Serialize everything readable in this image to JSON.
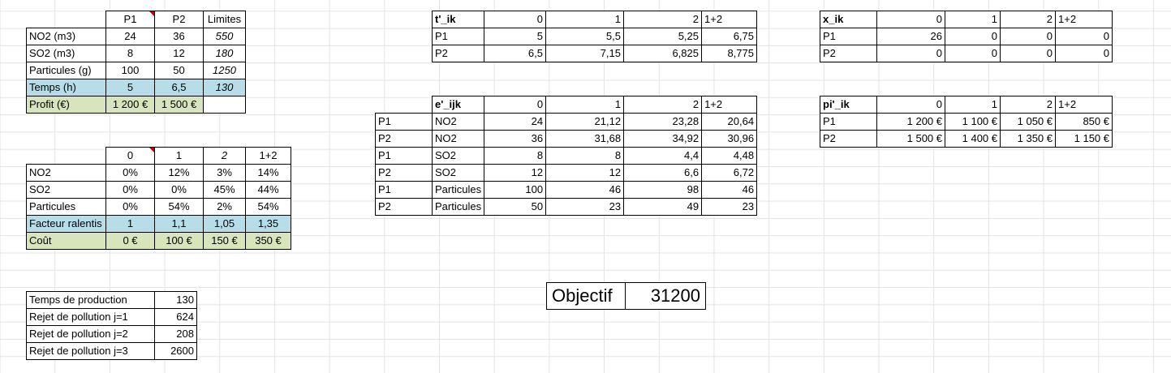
{
  "products": {
    "headers": [
      "P1",
      "P2",
      "Limites"
    ],
    "rows": [
      {
        "label": "NO2 (m3)",
        "p1": "24",
        "p2": "36",
        "limit": "550"
      },
      {
        "label": "SO2 (m3)",
        "p1": "8",
        "p2": "12",
        "limit": "180"
      },
      {
        "label": "Particules (g)",
        "p1": "100",
        "p2": "50",
        "limit": "1250"
      },
      {
        "label": "Temps (h)",
        "p1": "5",
        "p2": "6,5",
        "limit": "130"
      },
      {
        "label": "Profit (€)",
        "p1": "1 200 €",
        "p2": "1 500 €",
        "limit": ""
      }
    ]
  },
  "reductions": {
    "headers": [
      "0",
      "1",
      "2",
      "1+2"
    ],
    "rows": [
      {
        "label": "NO2",
        "v": [
          "0%",
          "12%",
          "3%",
          "14%"
        ]
      },
      {
        "label": "SO2",
        "v": [
          "0%",
          "0%",
          "45%",
          "44%"
        ]
      },
      {
        "label": "Particules",
        "v": [
          "0%",
          "54%",
          "2%",
          "54%"
        ]
      },
      {
        "label": "Facteur ralentis",
        "v": [
          "1",
          "1,1",
          "1,05",
          "1,35"
        ]
      },
      {
        "label": "Coût",
        "v": [
          "0 €",
          "100 €",
          "150 €",
          "350 €"
        ]
      }
    ]
  },
  "summary": {
    "rows": [
      {
        "label": "Temps de production",
        "value": "130"
      },
      {
        "label": "Rejet de pollution j=1",
        "value": "624"
      },
      {
        "label": "Rejet de pollution j=2",
        "value": "208"
      },
      {
        "label": "Rejet de pollution j=3",
        "value": "2600"
      }
    ]
  },
  "t_ik": {
    "title": "t'_ik",
    "headers": [
      "0",
      "1",
      "2",
      "1+2"
    ],
    "rows": [
      {
        "label": "P1",
        "v": [
          "5",
          "5,5",
          "5,25",
          "6,75"
        ]
      },
      {
        "label": "P2",
        "v": [
          "6,5",
          "7,15",
          "6,825",
          "8,775"
        ]
      }
    ]
  },
  "e_ijk": {
    "title": "e'_ijk",
    "headers": [
      "0",
      "1",
      "2",
      "1+2"
    ],
    "rows": [
      {
        "product": "P1",
        "pollutant": "NO2",
        "v": [
          "24",
          "21,12",
          "23,28",
          "20,64"
        ]
      },
      {
        "product": "P2",
        "pollutant": "NO2",
        "v": [
          "36",
          "31,68",
          "34,92",
          "30,96"
        ]
      },
      {
        "product": "P1",
        "pollutant": "SO2",
        "v": [
          "8",
          "8",
          "4,4",
          "4,48"
        ]
      },
      {
        "product": "P2",
        "pollutant": "SO2",
        "v": [
          "12",
          "12",
          "6,6",
          "6,72"
        ]
      },
      {
        "product": "P1",
        "pollutant": "Particules",
        "v": [
          "100",
          "46",
          "98",
          "46"
        ]
      },
      {
        "product": "P2",
        "pollutant": "Particules",
        "v": [
          "50",
          "23",
          "49",
          "23"
        ]
      }
    ]
  },
  "x_ik": {
    "title": "x_ik",
    "headers": [
      "0",
      "1",
      "2",
      "1+2"
    ],
    "rows": [
      {
        "label": "P1",
        "v": [
          "26",
          "0",
          "0",
          "0"
        ]
      },
      {
        "label": "P2",
        "v": [
          "0",
          "0",
          "0",
          "0"
        ]
      }
    ]
  },
  "pi_ik": {
    "title": "pi'_ik",
    "headers": [
      "0",
      "1",
      "2",
      "1+2"
    ],
    "rows": [
      {
        "label": "P1",
        "v": [
          "1 200 €",
          "1 100 €",
          "1 050 €",
          "850 €"
        ]
      },
      {
        "label": "P2",
        "v": [
          "1 500 €",
          "1 400 €",
          "1 350 €",
          "1 150 €"
        ]
      }
    ]
  },
  "objective": {
    "label": "Objectif",
    "value": "31200"
  }
}
